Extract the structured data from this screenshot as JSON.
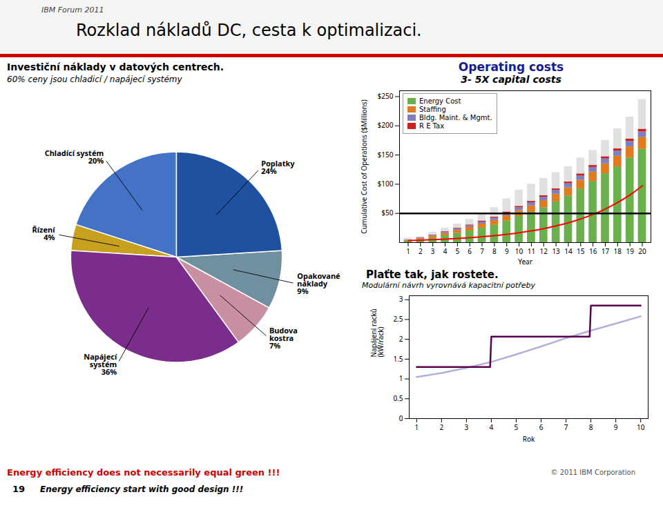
{
  "title": "Rozklad nákladů DC, cesta k optimalizaci.",
  "annotations": [
    "IBM Forum 2011",
    "Energy efficiency does not necessarily equal green !!!",
    "Energy efficiency start with good design !!!",
    "19",
    "© 2011 IBM Corporation"
  ],
  "chart_data": [
    {
      "type": "pie",
      "title": "Investiční náklady v datových centrech.",
      "subtitle": "60% ceny jsou chladicí / napájecí systémy",
      "categories": [
        "Chladící systém",
        "Řízení",
        "Napájecí\nsystém",
        "Budova\nkostra",
        "Opakované\nnáklady",
        "Poplatky"
      ],
      "values": [
        20,
        4,
        36,
        7,
        9,
        24
      ],
      "value_labels": [
        "20%",
        "4%",
        "36%",
        "7%",
        "9%",
        "24%"
      ],
      "data_labels": true,
      "colors": [
        "#4472c4",
        "#c8a020",
        "#7b2d8b",
        "#c890a0",
        "#7090a0",
        "#2050a0"
      ]
    },
    {
      "type": "bar",
      "title": "Operating costs",
      "subtitle": "3- 5X capital costs",
      "x": [
        1,
        2,
        3,
        4,
        5,
        6,
        7,
        8,
        9,
        10,
        11,
        12,
        13,
        14,
        15,
        16,
        17,
        18,
        19,
        20
      ],
      "stacked": true,
      "series": [
        {
          "name": "Energy Cost",
          "color": "#6ab04c",
          "values": [
            3,
            5,
            8,
            12,
            16,
            20,
            25,
            30,
            37,
            45,
            52,
            60,
            70,
            80,
            92,
            105,
            118,
            130,
            145,
            160
          ]
        },
        {
          "name": "Staffing",
          "color": "#e07b20",
          "values": [
            1,
            2,
            3,
            4,
            5,
            6,
            7,
            8,
            9,
            10,
            11,
            12,
            13,
            14,
            15,
            16,
            17,
            18,
            19,
            20
          ]
        },
        {
          "name": "Bldg. Maint. & Mgmt.",
          "color": "#8080c0",
          "values": [
            0.5,
            1,
            1.5,
            2,
            2.5,
            3,
            3.5,
            4,
            4.5,
            5,
            5.5,
            6,
            6.5,
            7,
            7.5,
            8,
            8.5,
            9,
            9.5,
            10
          ]
        },
        {
          "name": "R E Tax",
          "color": "#cc2020",
          "values": [
            0.2,
            0.4,
            0.6,
            0.8,
            1,
            1.2,
            1.4,
            1.6,
            1.8,
            2,
            2.2,
            2.4,
            2.6,
            2.8,
            3,
            3.2,
            3.4,
            3.6,
            3.8,
            4
          ]
        },
        {
          "type": "line",
          "color": "red",
          "x": [
            1,
            2,
            3,
            4,
            5,
            6,
            7,
            8,
            9,
            10,
            11,
            12,
            13,
            14,
            15,
            16,
            17,
            18,
            19,
            20
          ],
          "values": [
            3.5,
            4.17,
            4.97,
            5.92,
            7.05,
            8.4,
            10,
            11.91,
            14.19,
            16.91,
            20.14,
            23.99,
            28.58,
            34.05,
            40.56,
            48.32,
            57.56,
            68.56,
            81.68,
            97.3
          ]
        }
      ],
      "background_values": [
        8,
        10,
        18,
        25,
        32,
        40,
        50,
        60,
        75,
        90,
        100,
        110,
        120,
        130,
        145,
        158,
        175,
        195,
        215,
        245
      ],
      "background_color": "#cccccc",
      "reference_line": {
        "value": 50,
        "color": "black"
      },
      "xlabel": "Year",
      "ylabel": "Cumulative Cost of Operations ($Millions)",
      "xlim": [
        0.3,
        20.7
      ],
      "xticks": [
        1,
        2,
        3,
        4,
        5,
        6,
        7,
        8,
        9,
        10,
        11,
        12,
        13,
        14,
        15,
        16,
        17,
        18,
        19,
        20
      ],
      "ylim": [
        0,
        260
      ],
      "yticks": [
        {
          "value": 50,
          "label": "$50"
        },
        {
          "value": 100,
          "label": "$100"
        },
        {
          "value": 150,
          "label": "$150"
        },
        {
          "value": 200,
          "label": "$200"
        },
        {
          "value": 250,
          "label": "$250"
        }
      ],
      "legend": "upper left"
    },
    {
      "type": "line",
      "title": "Plaťte tak, jak rostete.",
      "subtitle": "Modulární návrh vyrovnává kapacitní potřeby",
      "series": [
        {
          "color": "#b0b0d8",
          "x": [
            1,
            2,
            3,
            4,
            5,
            6,
            7,
            8,
            9,
            10
          ],
          "values": [
            1.05,
            1.15,
            1.28,
            1.43,
            1.62,
            1.82,
            2.03,
            2.22,
            2.4,
            2.58
          ]
        },
        {
          "color": "#5a0050",
          "x": [
            1,
            3.95,
            4,
            7.95,
            8,
            10
          ],
          "values": [
            1.3,
            1.3,
            2.07,
            2.07,
            2.85,
            2.85
          ]
        }
      ],
      "xlabel": "Rok",
      "ylabel": "Napájení racků\n(kW/rack)",
      "xlim": [
        0.7,
        10.3
      ],
      "xticks": [
        1,
        2,
        3,
        4,
        5,
        6,
        7,
        8,
        9,
        10
      ],
      "ylim": [
        0,
        3.1
      ],
      "yticks": [
        0,
        0.5,
        1,
        1.5,
        2,
        2.5,
        3
      ]
    }
  ]
}
